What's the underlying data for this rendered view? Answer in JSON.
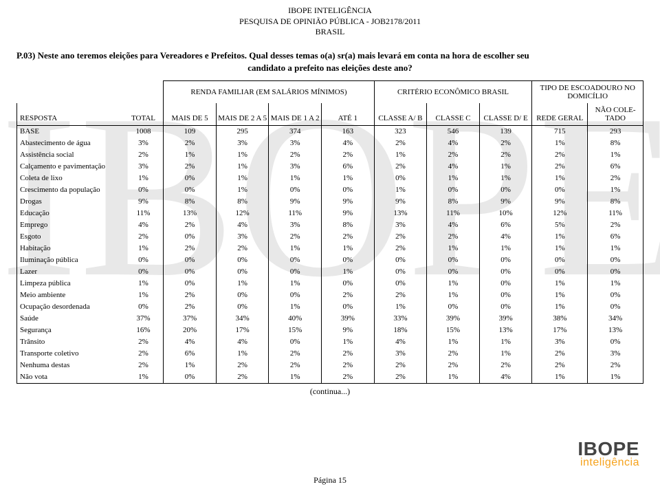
{
  "watermark": "IBOPE",
  "header": {
    "org": "IBOPE INTELIGÊNCIA",
    "survey": "PESQUISA DE OPINIÃO PÚBLICA - JOB2178/2011",
    "country": "BRASIL"
  },
  "question_line1": "P.03) Neste ano teremos eleições para Vereadores e Prefeitos. Qual desses temas o(a) sr(a) mais levará em conta na hora de escolher seu",
  "question_line2": "candidato a prefeito nas eleições deste ano?",
  "groups": {
    "g1": "RENDA FAMILIAR (EM SALÁRIOS MÍNIMOS)",
    "g2": "CRITÉRIO ECONÔMICO BRASIL",
    "g3": "TIPO DE ESCOADOURO NO DOMICÍLIO"
  },
  "columns": {
    "resposta": "RESPOSTA",
    "total": "TOTAL",
    "c1": "MAIS DE 5",
    "c2": "MAIS DE 2 A 5",
    "c3": "MAIS DE 1 A 2",
    "c4": "ATÉ 1",
    "c5": "CLASSE A/ B",
    "c6": "CLASSE C",
    "c7": "CLASSE D/ E",
    "c8": "REDE GERAL",
    "c9": "NÃO COLE- TADO"
  },
  "rows": [
    {
      "label": "BASE",
      "v": [
        "1008",
        "109",
        "295",
        "374",
        "163",
        "323",
        "546",
        "139",
        "715",
        "293"
      ]
    },
    {
      "label": "Abastecimento de água",
      "v": [
        "3%",
        "2%",
        "3%",
        "3%",
        "4%",
        "2%",
        "4%",
        "2%",
        "1%",
        "8%"
      ]
    },
    {
      "label": "Assistência social",
      "v": [
        "2%",
        "1%",
        "1%",
        "2%",
        "2%",
        "1%",
        "2%",
        "2%",
        "2%",
        "1%"
      ]
    },
    {
      "label": "Calçamento e pavimentação",
      "v": [
        "3%",
        "2%",
        "1%",
        "3%",
        "6%",
        "2%",
        "4%",
        "1%",
        "2%",
        "6%"
      ]
    },
    {
      "label": "Coleta de lixo",
      "v": [
        "1%",
        "0%",
        "1%",
        "1%",
        "1%",
        "0%",
        "1%",
        "1%",
        "1%",
        "2%"
      ]
    },
    {
      "label": "Crescimento da população",
      "v": [
        "0%",
        "0%",
        "1%",
        "0%",
        "0%",
        "1%",
        "0%",
        "0%",
        "0%",
        "1%"
      ]
    },
    {
      "label": "Drogas",
      "v": [
        "9%",
        "8%",
        "8%",
        "9%",
        "9%",
        "9%",
        "8%",
        "9%",
        "9%",
        "8%"
      ]
    },
    {
      "label": "Educação",
      "v": [
        "11%",
        "13%",
        "12%",
        "11%",
        "9%",
        "13%",
        "11%",
        "10%",
        "12%",
        "11%"
      ]
    },
    {
      "label": "Emprego",
      "v": [
        "4%",
        "2%",
        "4%",
        "3%",
        "8%",
        "3%",
        "4%",
        "6%",
        "5%",
        "2%"
      ]
    },
    {
      "label": "Esgoto",
      "v": [
        "2%",
        "0%",
        "3%",
        "2%",
        "2%",
        "2%",
        "2%",
        "4%",
        "1%",
        "6%"
      ]
    },
    {
      "label": "Habitação",
      "v": [
        "1%",
        "2%",
        "2%",
        "1%",
        "1%",
        "2%",
        "1%",
        "1%",
        "1%",
        "1%"
      ]
    },
    {
      "label": "Iluminação pública",
      "v": [
        "0%",
        "0%",
        "0%",
        "0%",
        "0%",
        "0%",
        "0%",
        "0%",
        "0%",
        "0%"
      ]
    },
    {
      "label": "Lazer",
      "v": [
        "0%",
        "0%",
        "0%",
        "0%",
        "1%",
        "0%",
        "0%",
        "0%",
        "0%",
        "0%"
      ]
    },
    {
      "label": "Limpeza pública",
      "v": [
        "1%",
        "0%",
        "1%",
        "1%",
        "0%",
        "0%",
        "1%",
        "0%",
        "1%",
        "1%"
      ]
    },
    {
      "label": "Meio ambiente",
      "v": [
        "1%",
        "2%",
        "0%",
        "0%",
        "2%",
        "2%",
        "1%",
        "0%",
        "1%",
        "0%"
      ]
    },
    {
      "label": "Ocupação desordenada",
      "v": [
        "0%",
        "2%",
        "0%",
        "1%",
        "0%",
        "1%",
        "0%",
        "0%",
        "1%",
        "0%"
      ]
    },
    {
      "label": "Saúde",
      "v": [
        "37%",
        "37%",
        "34%",
        "40%",
        "39%",
        "33%",
        "39%",
        "39%",
        "38%",
        "34%"
      ]
    },
    {
      "label": "Segurança",
      "v": [
        "16%",
        "20%",
        "17%",
        "15%",
        "9%",
        "18%",
        "15%",
        "13%",
        "17%",
        "13%"
      ]
    },
    {
      "label": "Trânsito",
      "v": [
        "2%",
        "4%",
        "4%",
        "0%",
        "1%",
        "4%",
        "1%",
        "1%",
        "3%",
        "0%"
      ]
    },
    {
      "label": "Transporte coletivo",
      "v": [
        "2%",
        "6%",
        "1%",
        "2%",
        "2%",
        "3%",
        "2%",
        "1%",
        "2%",
        "3%"
      ]
    },
    {
      "label": "Nenhuma destas",
      "v": [
        "2%",
        "1%",
        "2%",
        "2%",
        "2%",
        "2%",
        "2%",
        "2%",
        "2%",
        "2%"
      ]
    },
    {
      "label": "Não vota",
      "v": [
        "1%",
        "0%",
        "2%",
        "1%",
        "2%",
        "2%",
        "1%",
        "4%",
        "1%",
        "1%"
      ]
    }
  ],
  "continua": "(continua...)",
  "logo": {
    "line1": "IBOPE",
    "line2": "inteligência"
  },
  "page": "Página 15"
}
